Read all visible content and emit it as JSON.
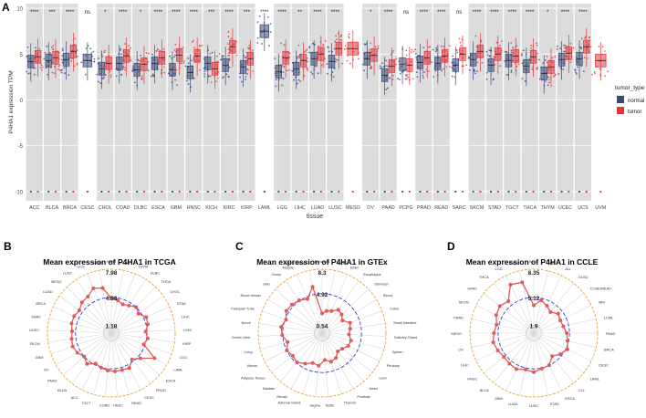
{
  "panels": {
    "A": {
      "letter": "A"
    },
    "B": {
      "letter": "B"
    },
    "C": {
      "letter": "C"
    },
    "D": {
      "letter": "D"
    }
  },
  "chart_data": [
    {
      "id": "A",
      "type": "box",
      "title": "",
      "xlabel": "tissue",
      "ylabel": "P4HA1 expression TPM",
      "ylim": [
        -11,
        10.5
      ],
      "yticks": [
        -10,
        -5,
        0,
        5,
        10
      ],
      "legend": {
        "title": "tumor_type",
        "position": "right",
        "entries": [
          {
            "name": "normal",
            "color": "#3b4a7a"
          },
          {
            "name": "tumor",
            "color": "#e0383c"
          }
        ]
      },
      "categories": [
        "ACC",
        "BLCA",
        "BRCA",
        "CESC",
        "CHOL",
        "COAD",
        "DLBC",
        "ESCA",
        "GBM",
        "HNSC",
        "KICH",
        "KIRC",
        "KIRP",
        "LAML",
        "LGG",
        "LIHC",
        "LUAD",
        "LUSC",
        "MESO",
        "OV",
        "PAAD",
        "PCPG",
        "PRAD",
        "READ",
        "SARC",
        "SKCM",
        "STAD",
        "TGCT",
        "THCA",
        "THYM",
        "UCEC",
        "UCS",
        "UVM"
      ],
      "significance": [
        "****",
        "***",
        "****",
        "ns",
        "*",
        "****",
        "*",
        "****",
        "****",
        "****",
        "***",
        "****",
        "***",
        "****",
        "****",
        "**",
        "****",
        "****",
        "",
        "*",
        "****",
        "ns",
        "****",
        "****",
        "ns",
        "****",
        "****",
        "****",
        "****",
        "*",
        "****",
        "****",
        ""
      ],
      "series": [
        {
          "name": "normal",
          "median": [
            4.2,
            4.3,
            4.4,
            4.3,
            3.4,
            4.0,
            3.3,
            4.0,
            3.3,
            3.0,
            4.0,
            3.8,
            3.6,
            7.5,
            3.1,
            3.4,
            4.5,
            4.2,
            null,
            4.5,
            2.7,
            3.9,
            4.1,
            4.0,
            3.8,
            4.4,
            3.8,
            4.3,
            3.7,
            2.9,
            4.4,
            4.5,
            null
          ]
        },
        {
          "name": "tumor",
          "median": [
            4.7,
            4.6,
            5.3,
            null,
            4.0,
            4.8,
            3.9,
            4.6,
            4.9,
            4.8,
            3.4,
            5.8,
            4.5,
            null,
            4.6,
            4.3,
            5.0,
            5.6,
            5.6,
            4.9,
            3.7,
            3.8,
            4.6,
            4.8,
            5.0,
            5.3,
            5.0,
            4.8,
            4.7,
            3.6,
            5.1,
            5.8,
            4.3
          ]
        }
      ]
    },
    {
      "id": "B",
      "type": "radar",
      "title": "Mean expression of P4HA1 in TCGA",
      "rings": [
        "7.98",
        "4.58",
        "1.18"
      ],
      "categories": [
        "KICH",
        "PCPG",
        "THYM",
        "DLBC",
        "THCA",
        "CHOL",
        "STAD",
        "LIHC",
        "UVM",
        "KIRP",
        "LGG",
        "LAML",
        "ESCA",
        "PRAD",
        "CESC",
        "READ",
        "HNSC",
        "COAD",
        "TGCT",
        "ACC",
        "BLCA",
        "PAAD",
        "OV",
        "GBM",
        "SKCM",
        "UCEC",
        "SARC",
        "BRCA",
        "LUAD",
        "MESO",
        "LUSC",
        "UCS",
        "KIRC"
      ],
      "values": [
        4.5,
        4.3,
        4.0,
        4.2,
        4.6,
        4.3,
        4.9,
        4.8,
        4.4,
        4.7,
        4.4,
        6.3,
        4.9,
        4.3,
        5.0,
        4.9,
        4.9,
        4.8,
        4.6,
        4.4,
        5.0,
        4.6,
        5.0,
        5.2,
        5.1,
        5.0,
        5.2,
        5.2,
        5.0,
        5.4,
        5.5,
        6.1,
        5.8
      ],
      "mean": 4.58
    },
    {
      "id": "C",
      "type": "radar",
      "title": "Mean expression of P4HA1 in GTEx",
      "rings": [
        "8.3",
        "4.92",
        "0.54"
      ],
      "categories": [
        "Pancreas",
        "Kidney",
        "Brain",
        "Esophagus",
        "Stomach",
        "Blood",
        "Colon",
        "Small Intestine",
        "Salivary Gland",
        "Spleen",
        "Pituitary",
        "Liver",
        "Heart",
        "Prostate",
        "Thyroid",
        "Testis",
        "Vagina",
        "Adrenal Gland",
        "Breast",
        "Bladder",
        "Adipose Tissue",
        "Uterus",
        "Lung",
        "Cervix Uteri",
        "Nerve",
        "Fallopian Tube",
        "Blood Vessel",
        "Skin",
        "Ovary",
        "Muscle",
        "Bone Marrow"
      ],
      "values": [
        2.2,
        2.6,
        2.8,
        3.4,
        3.2,
        2.8,
        3.6,
        3.4,
        3.2,
        3.6,
        3.5,
        3.0,
        2.8,
        3.4,
        3.6,
        3.2,
        4.0,
        3.8,
        4.3,
        4.8,
        4.6,
        4.9,
        4.4,
        5.0,
        5.2,
        4.8,
        5.3,
        5.2,
        5.0,
        4.6,
        6.0
      ],
      "mean": 4.92
    },
    {
      "id": "D",
      "type": "radar",
      "title": "Mean expression of P4HA1 in CCLE",
      "rings": [
        "8.35",
        "5.12",
        "1.9"
      ],
      "categories": [
        "SCLC",
        "NB",
        "ALL",
        "DLBC",
        "COAD/READ",
        "MM",
        "LCML",
        "PAAD",
        "BRCA",
        "CESC",
        "LAML",
        "CLL",
        "ESCA",
        "STAD",
        "LUSC",
        "LUAD",
        "GBM",
        "BLCA",
        "HNSC",
        "LIHC",
        "OV",
        "MESO",
        "PRAD",
        "SKCM",
        "SARC",
        "THCA",
        "LGG",
        "KIRC"
      ],
      "values": [
        4.2,
        4.9,
        4.5,
        4.1,
        4.6,
        4.4,
        4.5,
        4.8,
        5.0,
        5.3,
        4.9,
        4.4,
        5.1,
        5.2,
        5.5,
        5.3,
        5.6,
        5.5,
        5.4,
        5.6,
        5.8,
        5.6,
        5.4,
        5.8,
        6.0,
        5.7,
        7.2,
        7.0
      ],
      "mean": 5.12
    }
  ]
}
